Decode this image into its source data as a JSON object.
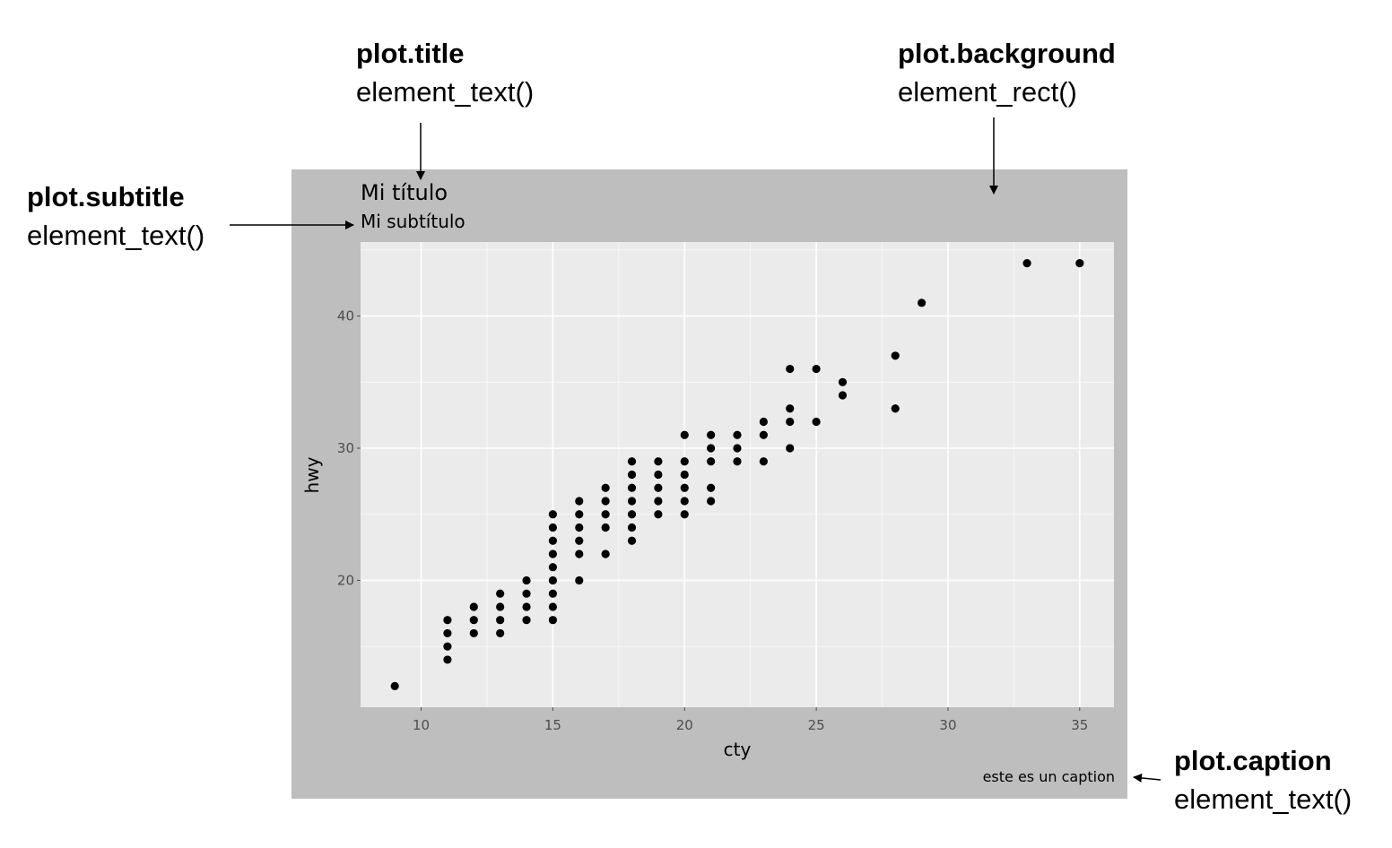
{
  "annotations": {
    "title": {
      "name": "plot.title",
      "fn": "element_text()"
    },
    "background": {
      "name": "plot.background",
      "fn": "element_rect()"
    },
    "subtitle": {
      "name": "plot.subtitle",
      "fn": "element_text()"
    },
    "caption": {
      "name": "plot.caption",
      "fn": "element_text()"
    }
  },
  "colors": {
    "plot_background": "#bebebe",
    "panel_background": "#ebebeb",
    "grid": "#ffffff",
    "point": "#000000"
  },
  "chart_data": {
    "type": "scatter",
    "title": "Mi título",
    "subtitle": "Mi subtítulo",
    "caption": "este es un caption",
    "xlabel": "cty",
    "ylabel": "hwy",
    "xlim": [
      7.7,
      36.3
    ],
    "ylim": [
      10.4,
      45.6
    ],
    "xticks": [
      10,
      15,
      20,
      25,
      30,
      35
    ],
    "yticks": [
      20,
      30,
      40
    ],
    "xtick_labels": [
      "10",
      "15",
      "20",
      "25",
      "30",
      "35"
    ],
    "ytick_labels": [
      "20",
      "30",
      "40"
    ],
    "grid": true,
    "points": [
      [
        9,
        12
      ],
      [
        11,
        14
      ],
      [
        11,
        15
      ],
      [
        11,
        16
      ],
      [
        11,
        17
      ],
      [
        12,
        16
      ],
      [
        12,
        17
      ],
      [
        12,
        18
      ],
      [
        13,
        16
      ],
      [
        13,
        17
      ],
      [
        13,
        18
      ],
      [
        13,
        19
      ],
      [
        14,
        17
      ],
      [
        14,
        18
      ],
      [
        14,
        19
      ],
      [
        14,
        20
      ],
      [
        15,
        17
      ],
      [
        15,
        18
      ],
      [
        15,
        19
      ],
      [
        15,
        20
      ],
      [
        15,
        21
      ],
      [
        15,
        22
      ],
      [
        15,
        23
      ],
      [
        15,
        24
      ],
      [
        15,
        25
      ],
      [
        16,
        20
      ],
      [
        16,
        22
      ],
      [
        16,
        23
      ],
      [
        16,
        24
      ],
      [
        16,
        25
      ],
      [
        16,
        26
      ],
      [
        17,
        22
      ],
      [
        17,
        24
      ],
      [
        17,
        25
      ],
      [
        17,
        26
      ],
      [
        17,
        27
      ],
      [
        18,
        23
      ],
      [
        18,
        24
      ],
      [
        18,
        25
      ],
      [
        18,
        26
      ],
      [
        18,
        27
      ],
      [
        18,
        28
      ],
      [
        18,
        29
      ],
      [
        19,
        25
      ],
      [
        19,
        26
      ],
      [
        19,
        27
      ],
      [
        19,
        28
      ],
      [
        19,
        29
      ],
      [
        20,
        25
      ],
      [
        20,
        26
      ],
      [
        20,
        27
      ],
      [
        20,
        28
      ],
      [
        20,
        29
      ],
      [
        20,
        31
      ],
      [
        21,
        26
      ],
      [
        21,
        27
      ],
      [
        21,
        29
      ],
      [
        21,
        30
      ],
      [
        21,
        31
      ],
      [
        22,
        29
      ],
      [
        22,
        30
      ],
      [
        22,
        31
      ],
      [
        23,
        29
      ],
      [
        23,
        31
      ],
      [
        23,
        32
      ],
      [
        24,
        30
      ],
      [
        24,
        32
      ],
      [
        24,
        33
      ],
      [
        24,
        36
      ],
      [
        25,
        32
      ],
      [
        25,
        36
      ],
      [
        26,
        34
      ],
      [
        26,
        35
      ],
      [
        28,
        33
      ],
      [
        28,
        37
      ],
      [
        29,
        41
      ],
      [
        33,
        44
      ],
      [
        35,
        44
      ]
    ]
  }
}
